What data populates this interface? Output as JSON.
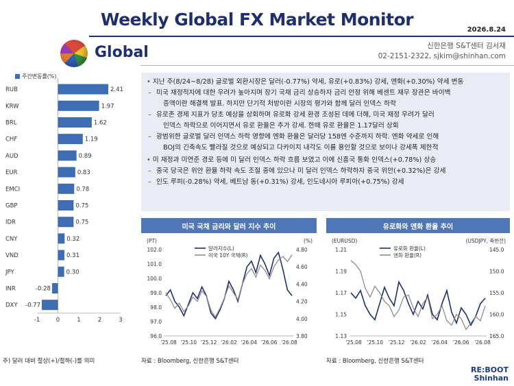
{
  "header": {
    "title": "Weekly Global FX Market Monitor",
    "date": "2026.8.24",
    "section": "Global",
    "author_line1": "신한은행 S&T센터 김서재",
    "author_line2": "02-2151-2322, sjkim@shinhan.com"
  },
  "bar_legend": "주간변동률(%)",
  "footnote": "주) 달러 대비 절상(+)/절하(-)를 의미",
  "summary": [
    {
      "kind": "main",
      "text": "지난 주(8/24~8/28) 글로벌 외환시장은 달러(-0.77%) 약세, 유로(+0.83%) 강세, 엔화(+0.30%) 약세 변동"
    },
    {
      "kind": "dash",
      "text": "미국 재정적자에 대한 우려가 높아지며 장기 국채 금리 상승하자 금리 안정 위해 베센트 재무 장관은 바이백"
    },
    {
      "kind": "cont",
      "text": "증액이란 해결책 발표. 하지만 단기적 처방이란 시장의 평가와 함께 달러 인덱스 하락"
    },
    {
      "kind": "dash",
      "text": "유로존 경제 지표가 당초 예상을 상회하며 유로화 강세 환경 조성된 데에 더해, 미국 재정 우려가 달러"
    },
    {
      "kind": "cont",
      "text": "인덱스 하락으로 이어지면서 유로 환율은 추가 강세. 한때 유로 환율은  1.17달러 상회"
    },
    {
      "kind": "dash",
      "text": "광범위한 글로벌 달러 인덱스 하락 영향에 엔화 환율은 달러당 158엔 수준까지 하락. 엔화 약세로 인해"
    },
    {
      "kind": "cont",
      "text": "BOJ의 긴축속도 빨라질 것으로 예상되고 다카이치 내각도 이를 용인할 것으로 보이나 강세폭 제한적"
    },
    {
      "kind": "main",
      "text": "미 재정과 미연준 경로 등에 미 달러 인덱스 하락 흐름 보였고 이에 신흥국 통화 인덱스(+0.78%) 상승"
    },
    {
      "kind": "dash",
      "text": "중국 당국은 위안 환율 하락 속도 조절 중에 있으나 미 달러 인덱스 하락하자 중국 위안(+0.32%)은 강세"
    },
    {
      "kind": "dash",
      "text": "인도 루피(-0.28%) 약세, 베트남 동(+0.31%) 강세, 인도네시아 루피아(+0.75%) 강세"
    }
  ],
  "chart_left": {
    "head": "미국 국채 금리와 달러 지수 추이",
    "left_unit": "(PT)",
    "right_unit": "(%)",
    "legend1": "달러지수(L)",
    "legend2": "미국 10Y 국채(R)",
    "source": "자료 : Bloomberg, 신한은행 S&T센터"
  },
  "chart_right": {
    "head": "유로화와 엔화 환율 추이",
    "left_unit": "(EURUSD)",
    "right_unit": "(USDJPY, 축반전)",
    "legend1": "유로화 환율(L)",
    "legend2": "엔화 환율(R)",
    "source": "자료 : Bloomberg, 신한은행 S&T센터"
  },
  "logo": {
    "line1": "RE:BOOT",
    "line2": "Shinhan"
  },
  "colors": {
    "navy": "#1f2f6e",
    "bar": "#3f6db3",
    "panel": "#e9ecf4",
    "series_dark": "#1f2f6e",
    "series_gray": "#8c8c8c"
  },
  "chart_data": [
    {
      "type": "bar",
      "orientation": "horizontal",
      "categories": [
        "RUB",
        "KRW",
        "BRL",
        "CHF",
        "AUD",
        "EUR",
        "EMCI",
        "GBP",
        "IDR",
        "CNY",
        "VND",
        "JPY",
        "INR",
        "DXY"
      ],
      "values": [
        2.41,
        1.97,
        1.62,
        1.19,
        0.89,
        0.83,
        0.78,
        0.75,
        0.75,
        0.32,
        0.31,
        0.3,
        -0.28,
        -0.77
      ],
      "series": [
        {
          "name": "주간변동률(%)"
        }
      ],
      "xlim": [
        -1,
        3
      ],
      "xticks": [
        "-1",
        "0",
        "1",
        "2",
        "3"
      ]
    },
    {
      "type": "line",
      "title": "미국 국채 금리와 달러 지수 추이",
      "x_ticks": [
        "'25.08",
        "'25.10",
        "'25.12",
        "'26.02",
        "'26.04",
        "'26.06",
        "'26.08"
      ],
      "y_left": {
        "unit": "(PT)",
        "range": [
          96.0,
          102.0
        ],
        "ticks": [
          "96.0",
          "97.0",
          "98.0",
          "99.0",
          "100.0",
          "101.0",
          "102.0"
        ]
      },
      "y_right": {
        "unit": "(%)",
        "range": [
          3.8,
          4.8
        ],
        "ticks": [
          "3.80",
          "4.00",
          "4.20",
          "4.40",
          "4.60",
          "4.80"
        ]
      },
      "series": [
        {
          "name": "달러지수(L)",
          "axis": "left",
          "values": [
            98.8,
            99.2,
            98.4,
            98.0,
            97.4,
            98.2,
            99.0,
            98.6,
            99.4,
            98.8,
            97.6,
            97.2,
            97.8,
            98.6,
            99.8,
            99.2,
            98.4,
            99.6,
            100.8,
            101.2,
            100.4,
            101.6,
            101.0,
            100.2,
            101.4,
            101.8,
            100.6,
            99.2,
            98.8
          ]
        },
        {
          "name": "미국 10Y 국채(R)",
          "axis": "right",
          "values": [
            4.3,
            4.22,
            4.12,
            4.18,
            4.08,
            4.15,
            4.25,
            4.2,
            4.32,
            4.26,
            4.1,
            4.02,
            4.12,
            4.24,
            4.38,
            4.3,
            4.22,
            4.4,
            4.52,
            4.58,
            4.48,
            4.62,
            4.56,
            4.46,
            4.6,
            4.68,
            4.72,
            4.66,
            4.74
          ]
        }
      ]
    },
    {
      "type": "line",
      "title": "유로화와 엔화 환율 추이",
      "x_ticks": [
        "'25.08",
        "'25.10",
        "'25.12",
        "'26.02",
        "'26.04",
        "'26.06",
        "'26.08"
      ],
      "y_left": {
        "unit": "(EURUSD)",
        "range": [
          1.13,
          1.21
        ],
        "ticks": [
          "1.13",
          "1.15",
          "1.17",
          "1.19",
          "1.21"
        ]
      },
      "y_right": {
        "unit": "(USDJPY, 축반전)",
        "range": [
          145.0,
          165.0
        ],
        "inverted": true,
        "ticks": [
          "145.0",
          "150.0",
          "155.0",
          "160.0",
          "165.0"
        ]
      },
      "series": [
        {
          "name": "유로화 환율(L)",
          "axis": "left",
          "values": [
            1.17,
            1.165,
            1.172,
            1.158,
            1.15,
            1.145,
            1.16,
            1.175,
            1.165,
            1.158,
            1.18,
            1.172,
            1.16,
            1.15,
            1.162,
            1.155,
            1.168,
            1.15,
            1.145,
            1.16,
            1.172,
            1.152,
            1.142,
            1.156,
            1.15,
            1.14,
            1.148,
            1.16,
            1.165
          ]
        },
        {
          "name": "엔화 환율(R)",
          "axis": "right",
          "values": [
            147.5,
            148.5,
            150.0,
            154.0,
            156.0,
            153.5,
            155.0,
            157.0,
            158.0,
            160.5,
            159.0,
            156.0,
            155.5,
            158.5,
            160.5,
            157.5,
            156.0,
            161.0,
            160.0,
            158.0,
            161.5,
            162.5,
            160.0,
            161.0,
            163.5,
            162.0,
            160.5,
            161.5,
            158.0
          ]
        }
      ]
    }
  ]
}
